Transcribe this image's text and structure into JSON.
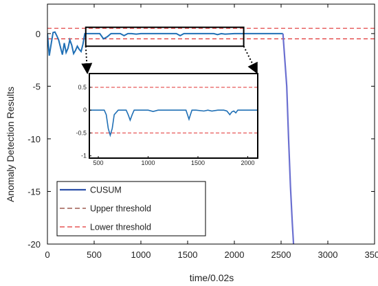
{
  "chart_data": {
    "type": "line",
    "xlabel": "time/0.02s",
    "ylabel": "Anomaly Detection Results",
    "xlim": [
      0,
      3500
    ],
    "ylim": [
      -20,
      2.8
    ],
    "xticks": [
      0,
      500,
      1000,
      1500,
      2000,
      2500,
      3000,
      3500
    ],
    "yticks": [
      0,
      -5,
      -10,
      -15,
      -20
    ],
    "grid": false,
    "legend_position": "bottom-left",
    "colors": {
      "cusum": "#1f6fb5",
      "cusum_legend": "#2b4fa8",
      "threshold": "#e03030",
      "threshold_legend": "#8b3a2e",
      "drop": "#6a6fd0"
    },
    "series": [
      {
        "name": "CUSUM",
        "x": [
          0,
          20,
          40,
          60,
          80,
          100,
          120,
          140,
          160,
          180,
          200,
          220,
          240,
          260,
          280,
          300,
          320,
          340,
          360,
          380,
          400,
          450,
          500,
          560,
          600,
          640,
          680,
          720,
          780,
          820,
          860,
          900,
          950,
          1000,
          1100,
          1200,
          1300,
          1380,
          1420,
          1460,
          1500,
          1600,
          1700,
          1780,
          1820,
          1860,
          1900,
          2000,
          2100,
          2200,
          2300,
          2400,
          2520,
          2560,
          2580,
          2600,
          2620,
          2640
        ],
        "y": [
          0,
          -2.1,
          -1.0,
          0.1,
          0.15,
          -0.2,
          -0.6,
          -1.3,
          -2.0,
          -0.9,
          -1.8,
          -1.4,
          -0.6,
          -1.1,
          -1.9,
          -1.6,
          -1.2,
          -1.5,
          -1.7,
          -1.0,
          0,
          0,
          0,
          0,
          -0.5,
          -0.3,
          0,
          0,
          0,
          -0.2,
          0,
          0,
          -0.05,
          0,
          0,
          0,
          0,
          0,
          -0.2,
          0,
          0,
          0,
          0,
          0,
          -0.1,
          0,
          -0.05,
          0,
          0,
          0,
          0,
          0,
          0,
          -5.0,
          -10.0,
          -14.5,
          -18.0,
          -21.0
        ]
      },
      {
        "name": "Upper threshold",
        "y": 0.5
      },
      {
        "name": "Lower threshold",
        "y": -0.5
      }
    ],
    "inset": {
      "xlim": [
        410,
        2100
      ],
      "ylim": [
        -1.05,
        0.8
      ],
      "xticks": [
        500,
        1000,
        1500,
        2000
      ],
      "yticks": [
        0.5,
        0,
        -0.5,
        -1
      ],
      "ytick_labels": [
        "0.5",
        "0",
        "-0.5",
        "-1"
      ],
      "x": [
        410,
        560,
        580,
        600,
        620,
        640,
        660,
        700,
        780,
        800,
        820,
        840,
        860,
        900,
        1000,
        1050,
        1100,
        1200,
        1300,
        1380,
        1395,
        1410,
        1425,
        1440,
        1480,
        1560,
        1600,
        1640,
        1700,
        1760,
        1790,
        1820,
        1840,
        1860,
        1880,
        1900,
        2100
      ],
      "y": [
        0,
        0,
        -0.1,
        -0.4,
        -0.55,
        -0.4,
        -0.1,
        0,
        0,
        -0.1,
        -0.22,
        -0.1,
        0,
        0,
        0,
        -0.03,
        0,
        0,
        0,
        0,
        -0.1,
        -0.2,
        -0.1,
        0,
        0,
        -0.02,
        0,
        -0.02,
        0,
        0,
        -0.02,
        -0.1,
        -0.04,
        -0.02,
        -0.06,
        0,
        0
      ]
    }
  }
}
